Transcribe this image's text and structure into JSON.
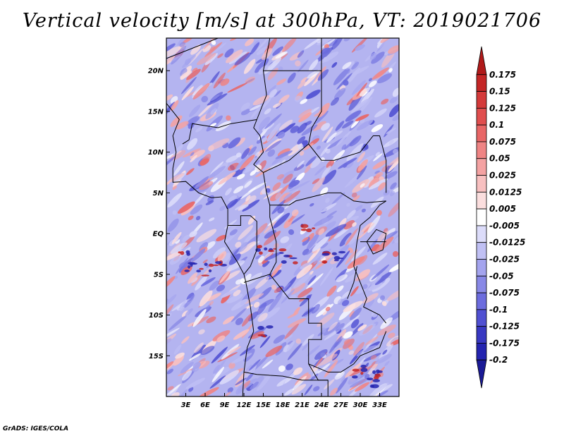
{
  "title": "Vertical velocity [m/s] at 300hPa, VT: 2019021706",
  "credit": "GrADS: IGES/COLA",
  "map": {
    "lon_range": [
      0,
      36
    ],
    "lat_range": [
      -20,
      24
    ],
    "lat_ticks": [
      {
        "value": 20,
        "label": "20N"
      },
      {
        "value": 15,
        "label": "15N"
      },
      {
        "value": 10,
        "label": "10N"
      },
      {
        "value": 5,
        "label": "5N"
      },
      {
        "value": 0,
        "label": "EQ"
      },
      {
        "value": -5,
        "label": "5S"
      },
      {
        "value": -10,
        "label": "10S"
      },
      {
        "value": -15,
        "label": "15S"
      }
    ],
    "lon_ticks": [
      {
        "value": 3,
        "label": "3E"
      },
      {
        "value": 6,
        "label": "6E"
      },
      {
        "value": 9,
        "label": "9E"
      },
      {
        "value": 12,
        "label": "12E"
      },
      {
        "value": 15,
        "label": "15E"
      },
      {
        "value": 18,
        "label": "18E"
      },
      {
        "value": 21,
        "label": "21E"
      },
      {
        "value": 24,
        "label": "24E"
      },
      {
        "value": 27,
        "label": "27E"
      },
      {
        "value": 30,
        "label": "30E"
      },
      {
        "value": 33,
        "label": "33E"
      }
    ]
  },
  "colorbar": {
    "labels": [
      "0.175",
      "0.15",
      "0.125",
      "0.1",
      "0.075",
      "0.05",
      "0.025",
      "0.0125",
      "0.005",
      "-0.005",
      "-0.0125",
      "-0.025",
      "-0.05",
      "-0.075",
      "-0.1",
      "-0.125",
      "-0.175",
      "-0.2"
    ],
    "colors": [
      "#b01a1a",
      "#c42626",
      "#d43a3a",
      "#e04e4e",
      "#e86666",
      "#ef8484",
      "#f4a2a2",
      "#f8c0c0",
      "#fbdede",
      "#ffffff",
      "#dcdcfa",
      "#c0c0f4",
      "#a4a4ee",
      "#8888e6",
      "#6c6cde",
      "#5050d2",
      "#3838c2",
      "#2424b0",
      "#1a1a96"
    ]
  }
}
